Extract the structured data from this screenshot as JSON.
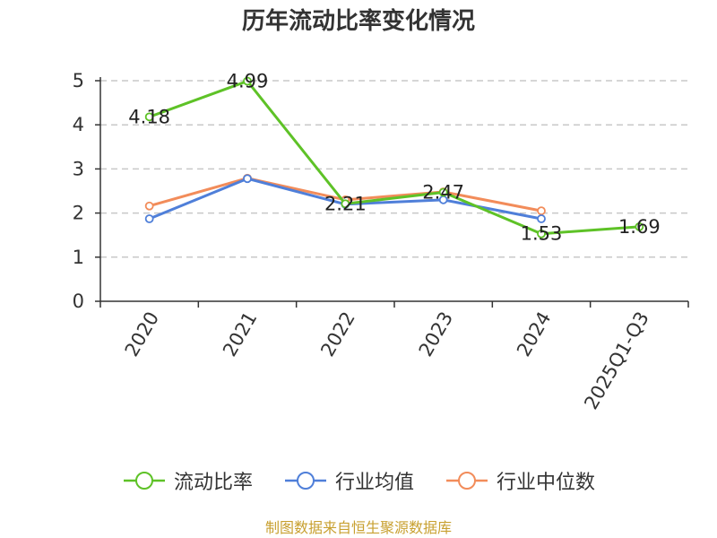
{
  "colors": {
    "current_ratio": "#5ec227",
    "industry_avg": "#4f7fd9",
    "industry_median": "#f28c5a",
    "grid": "#c8c8c8",
    "axis": "#333333",
    "source": "#c8a030"
  },
  "source_note": "制图数据来自恒生聚源数据库",
  "chart_data": {
    "type": "line",
    "title": "历年流动比率变化情况",
    "categories": [
      "2020",
      "2021",
      "2022",
      "2023",
      "2024",
      "2025Q1-Q3"
    ],
    "ylim": [
      0,
      5
    ],
    "yticks": [
      0,
      1,
      2,
      3,
      4,
      5
    ],
    "grid": true,
    "legend_position": "bottom",
    "series": [
      {
        "name": "流动比率",
        "values": [
          4.18,
          4.99,
          2.21,
          2.47,
          1.53,
          1.69
        ],
        "labels": [
          "4.18",
          "4.99",
          "2.21",
          "2.47",
          "1.53",
          "1.69"
        ]
      },
      {
        "name": "行业均值",
        "values": [
          1.87,
          2.78,
          2.2,
          2.3,
          1.87,
          null
        ]
      },
      {
        "name": "行业中位数",
        "values": [
          2.16,
          2.79,
          2.3,
          2.48,
          2.05,
          null
        ]
      }
    ]
  }
}
